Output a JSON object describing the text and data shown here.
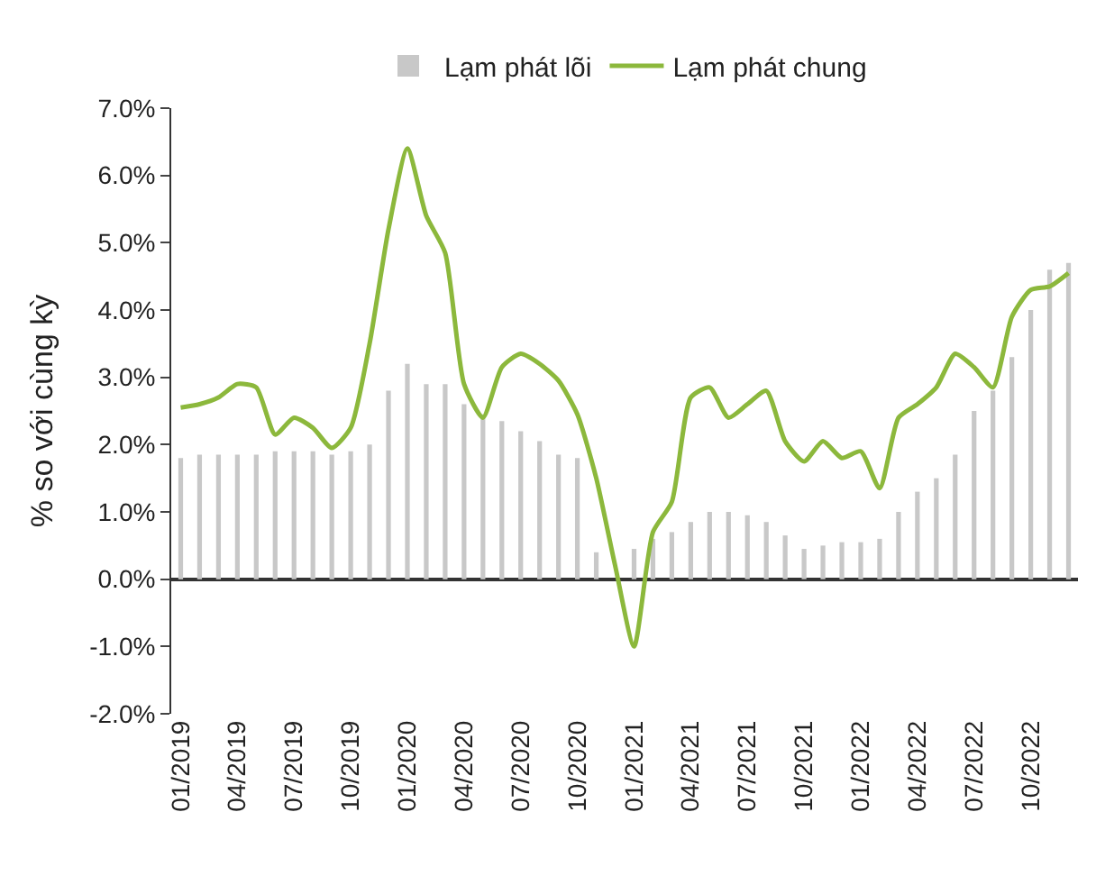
{
  "chart_data": {
    "type": "bar",
    "categories": [
      "01/2019",
      null,
      null,
      "04/2019",
      null,
      null,
      "07/2019",
      null,
      null,
      "10/2019",
      null,
      null,
      "01/2020",
      null,
      null,
      "04/2020",
      null,
      null,
      "07/2020",
      null,
      null,
      "10/2020",
      null,
      null,
      "01/2021",
      null,
      null,
      "04/2021",
      null,
      null,
      "07/2021",
      null,
      null,
      "10/2021",
      null,
      null,
      "01/2022",
      null,
      null,
      "04/2022",
      null,
      null,
      "07/2022",
      null,
      null,
      "10/2022",
      null,
      null
    ],
    "series": [
      {
        "name": "Lạm phát lõi",
        "color": "#c8c8c8",
        "values": [
          1.8,
          1.85,
          1.85,
          1.85,
          1.85,
          1.9,
          1.9,
          1.9,
          1.85,
          1.9,
          2.0,
          2.8,
          3.2,
          2.9,
          2.9,
          2.6,
          2.45,
          2.35,
          2.2,
          2.05,
          1.85,
          1.8,
          0.4,
          null,
          0.45,
          0.6,
          0.7,
          0.85,
          1.0,
          1.0,
          0.95,
          0.85,
          0.65,
          0.45,
          0.5,
          0.55,
          0.55,
          0.6,
          1.0,
          1.3,
          1.5,
          1.85,
          2.5,
          2.8,
          3.3,
          4.0,
          4.6,
          4.7
        ]
      },
      {
        "name": "Lạm phát chung",
        "type": "line",
        "color": "#8cb83c",
        "values": [
          2.55,
          2.6,
          2.7,
          2.9,
          2.85,
          2.15,
          2.4,
          2.25,
          1.95,
          2.25,
          3.5,
          5.2,
          6.4,
          5.4,
          4.85,
          2.9,
          2.4,
          3.15,
          3.35,
          3.2,
          2.95,
          2.45,
          1.5,
          0.2,
          -1.0,
          0.7,
          1.15,
          2.7,
          2.85,
          2.4,
          2.6,
          2.8,
          2.05,
          1.75,
          2.05,
          1.8,
          1.9,
          1.35,
          2.4,
          2.6,
          2.85,
          3.35,
          3.15,
          2.85,
          3.9,
          4.3,
          4.35,
          4.55
        ]
      }
    ],
    "ylabel": "% so với cùng kỳ",
    "ylim": [
      -2,
      7
    ],
    "yticks": [
      {
        "value": -2,
        "label": "-2.0%"
      },
      {
        "value": -1,
        "label": "-1.0%"
      },
      {
        "value": 0,
        "label": "0.0%"
      },
      {
        "value": 1,
        "label": "1.0%"
      },
      {
        "value": 2,
        "label": "2.0%"
      },
      {
        "value": 3,
        "label": "3.0%"
      },
      {
        "value": 4,
        "label": "4.0%"
      },
      {
        "value": 5,
        "label": "5.0%"
      },
      {
        "value": 6,
        "label": "6.0%"
      },
      {
        "value": 7,
        "label": "7.0%"
      }
    ],
    "legend": "top",
    "line_style": "solid",
    "marker": "none"
  }
}
